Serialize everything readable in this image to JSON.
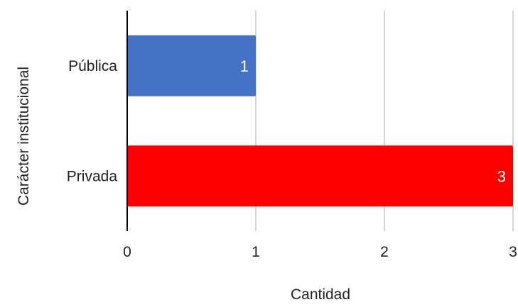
{
  "chart_data": {
    "type": "bar",
    "orientation": "horizontal",
    "categories": [
      "Pública",
      "Privada"
    ],
    "values": [
      1,
      3
    ],
    "colors": [
      "#4472C4",
      "#FF0000"
    ],
    "data_labels": [
      "1",
      "3"
    ],
    "xlabel": "Cantidad",
    "ylabel": "Carácter institucional",
    "xlim": [
      0,
      3
    ],
    "x_ticks": [
      "0",
      "1",
      "2",
      "3"
    ],
    "grid": "vertical",
    "gridline_color": "#C8C8C8",
    "axis_color": "#000000",
    "legend": "none"
  }
}
